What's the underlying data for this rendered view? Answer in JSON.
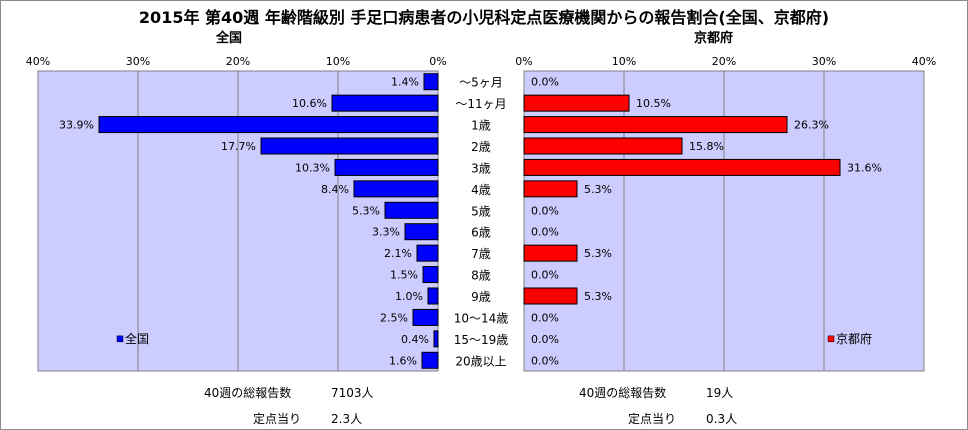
{
  "title": "2015年 第40週 年齢階級別 手足口病患者の小児科定点医療機関からの報告割合(全国、京都府)",
  "colors": {
    "plot_bg": "#ccccff",
    "national_bar": "#0000ff",
    "kyoto_bar": "#ff0000",
    "grid": "#7f7f7f"
  },
  "chart_data": [
    {
      "type": "bar",
      "orientation": "horizontal",
      "direction": "right-to-left",
      "title": "全国",
      "categories": [
        "～5ヶ月",
        "～11ヶ月",
        "1歳",
        "2歳",
        "3歳",
        "4歳",
        "5歳",
        "6歳",
        "7歳",
        "8歳",
        "9歳",
        "10～14歳",
        "15～19歳",
        "20歳以上"
      ],
      "series": [
        {
          "name": "全国",
          "values": [
            1.4,
            10.6,
            33.9,
            17.7,
            10.3,
            8.4,
            5.3,
            3.3,
            2.1,
            1.5,
            1.0,
            2.5,
            0.4,
            1.6
          ]
        }
      ],
      "value_labels": [
        "1.4%",
        "10.6%",
        "33.9%",
        "17.7%",
        "10.3%",
        "8.4%",
        "5.3%",
        "3.3%",
        "2.1%",
        "1.5%",
        "1.0%",
        "2.5%",
        "0.4%",
        "1.6%"
      ],
      "xlim": [
        0,
        40
      ],
      "xticks": [
        "40%",
        "30%",
        "20%",
        "10%",
        "0%"
      ],
      "legend": "lower-left",
      "grid": true
    },
    {
      "type": "bar",
      "orientation": "horizontal",
      "direction": "left-to-right",
      "title": "京都府",
      "categories": [
        "～5ヶ月",
        "～11ヶ月",
        "1歳",
        "2歳",
        "3歳",
        "4歳",
        "5歳",
        "6歳",
        "7歳",
        "8歳",
        "9歳",
        "10～14歳",
        "15～19歳",
        "20歳以上"
      ],
      "series": [
        {
          "name": "京都府",
          "values": [
            0.0,
            10.5,
            26.3,
            15.8,
            31.6,
            5.3,
            0.0,
            0.0,
            5.3,
            0.0,
            5.3,
            0.0,
            0.0,
            0.0
          ]
        }
      ],
      "value_labels": [
        "0.0%",
        "10.5%",
        "26.3%",
        "15.8%",
        "31.6%",
        "5.3%",
        "0.0%",
        "0.0%",
        "5.3%",
        "0.0%",
        "5.3%",
        "0.0%",
        "0.0%",
        "0.0%"
      ],
      "xlim": [
        0,
        40
      ],
      "xticks": [
        "0%",
        "10%",
        "20%",
        "30%",
        "40%"
      ],
      "legend": "lower-right",
      "grid": true
    }
  ],
  "footer": {
    "national_total_label": "40週の総報告数",
    "national_total_value": "7103人",
    "national_per_label": "定点当り",
    "national_per_value": "2.3人",
    "kyoto_total_label": "40週の総報告数",
    "kyoto_total_value": "19人",
    "kyoto_per_label": "定点当り",
    "kyoto_per_value": "0.3人"
  }
}
